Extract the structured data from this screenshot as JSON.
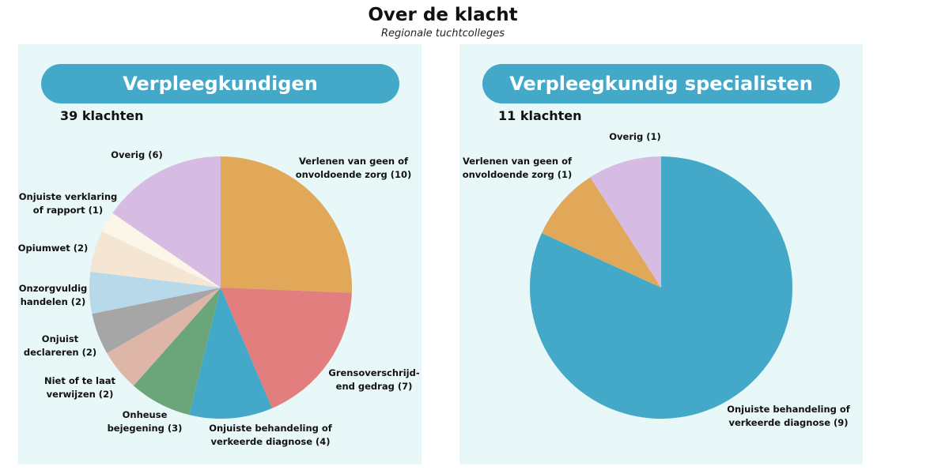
{
  "header": {
    "title": "Over de klacht",
    "subtitle": "Regionale tuchtcolleges"
  },
  "chart_data": [
    {
      "type": "pie",
      "title": "Verpleegkundigen",
      "subtitle": "39 klachten",
      "labels": [
        "Verlenen van geen of\nonvoldoende zorg (10)",
        "Grensoverschrijd-\nend gedrag (7)",
        "Onjuiste behandeling of\nverkeerde diagnose (4)",
        "Onheuse\nbejegening (3)",
        "Niet of te laat\nverwijzen (2)",
        "Onjuist\ndeclareren (2)",
        "Onzorgvuldig\nhandelen (2)",
        "Opiumwet (2)",
        "Onjuiste verklaring\nof rapport (1)",
        "Overig (6)"
      ],
      "values": [
        10,
        7,
        4,
        3,
        2,
        2,
        2,
        2,
        1,
        6
      ],
      "colors": [
        "#E2A85A",
        "#E27E7E",
        "#44A9C9",
        "#6BA57A",
        "#DDB6A8",
        "#A6A6A6",
        "#B7D9EA",
        "#F5E6D3",
        "#FBF6E8",
        "#D6BCE3"
      ]
    },
    {
      "type": "pie",
      "title": "Verpleegkundig specialisten",
      "subtitle": "11 klachten",
      "labels": [
        "Onjuiste behandeling of\nverkeerde diagnose (9)",
        "Verlenen van geen of\nonvoldoende zorg  (1)",
        "Overig (1)"
      ],
      "values": [
        9,
        1,
        1
      ],
      "colors": [
        "#44A9C9",
        "#E2A85A",
        "#D6BCE3"
      ]
    }
  ]
}
